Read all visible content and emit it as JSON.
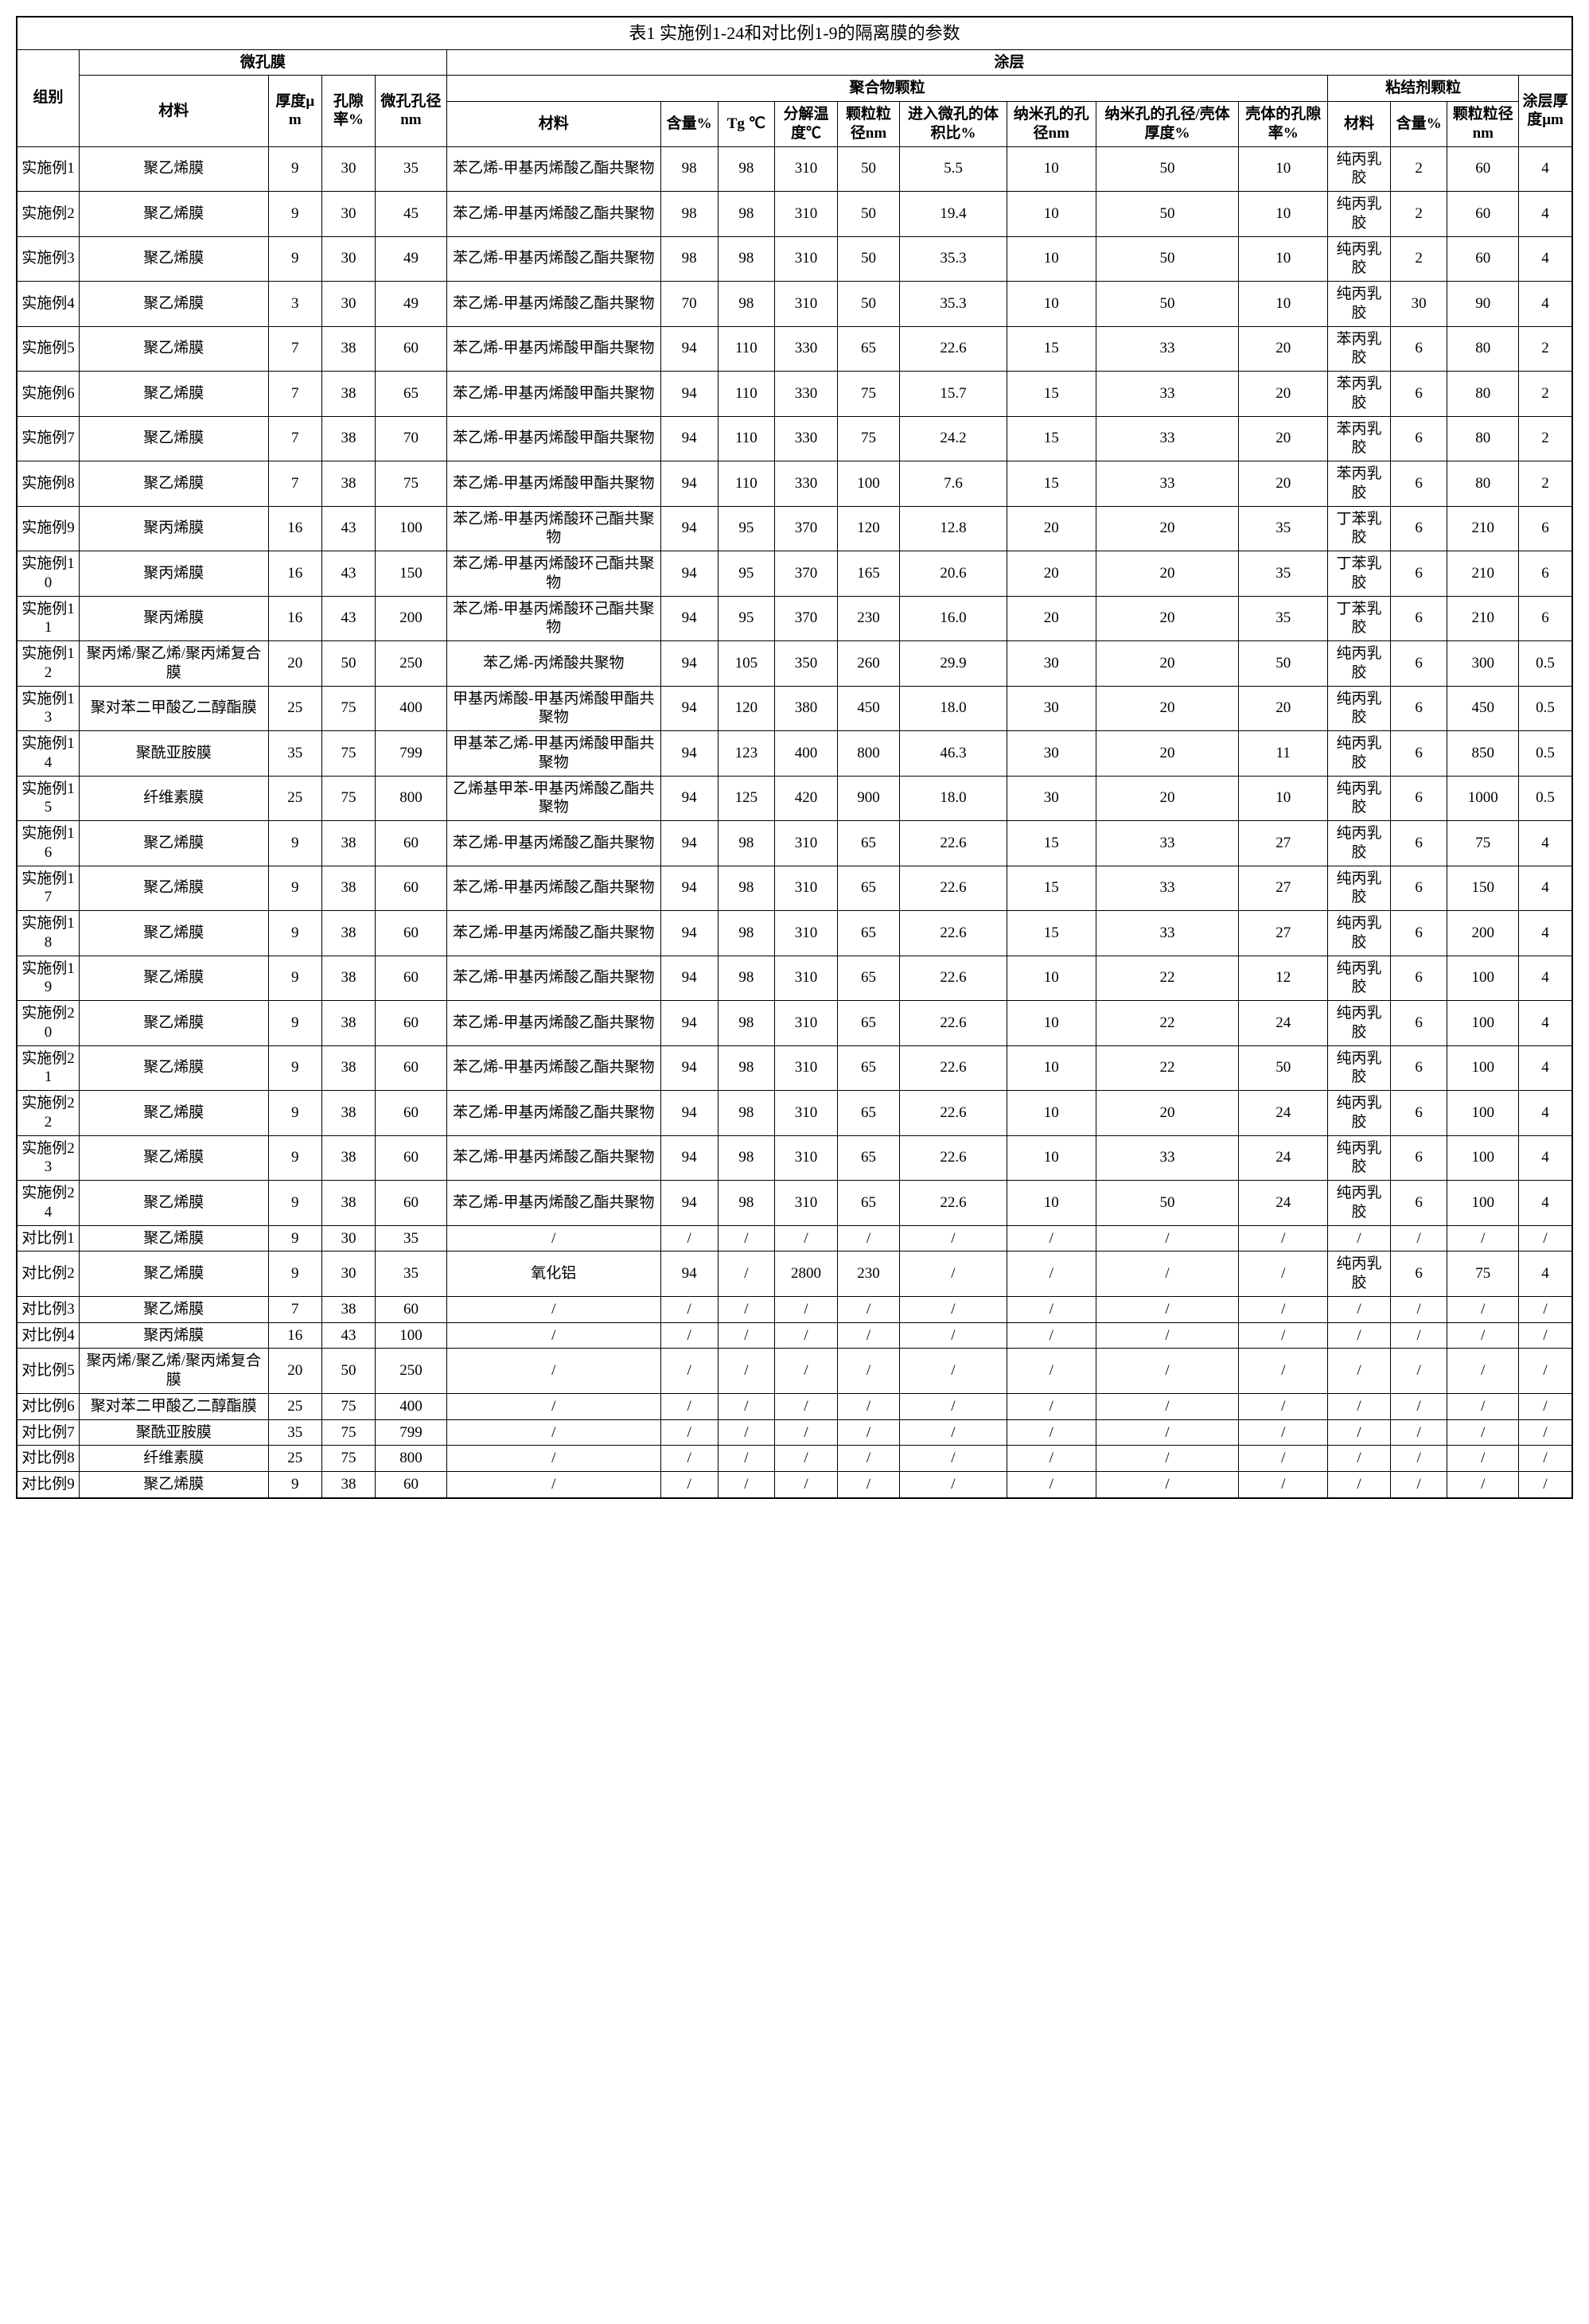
{
  "title": "表1 实施例1-24和对比例1-9的隔离膜的参数",
  "headers": {
    "group": "组别",
    "micro": "微孔膜",
    "coating": "涂层",
    "material": "材料",
    "thickness": "厚度μm",
    "porosity": "孔隙率%",
    "pore_size": "微孔孔径nm",
    "polymer": "聚合物颗粒",
    "binder": "粘结剂颗粒",
    "coat_thick": "涂层厚度μm",
    "content": "含量%",
    "tg": "Tg ℃",
    "decomp": "分解温度℃",
    "particle": "颗粒粒径nm",
    "vol_ratio": "进入微孔的体积比%",
    "nano_pore": "纳米孔的孔径nm",
    "nano_ratio": "纳米孔的孔径/壳体厚度%",
    "shell_por": "壳体的孔隙率%",
    "b_material": "材料",
    "b_content": "含量%",
    "b_particle": "颗粒粒径nm"
  },
  "rows": [
    {
      "g": "实施例1",
      "m": "聚乙烯膜",
      "t": "9",
      "p": "30",
      "ps": "35",
      "cm": "苯乙烯-甲基丙烯酸乙酯共聚物",
      "c": "98",
      "tg": "98",
      "d": "310",
      "pp": "50",
      "v": "5.5",
      "n": "10",
      "r": "50",
      "s": "10",
      "bm": "纯丙乳胶",
      "bc": "2",
      "bp": "60",
      "ct": "4"
    },
    {
      "g": "实施例2",
      "m": "聚乙烯膜",
      "t": "9",
      "p": "30",
      "ps": "45",
      "cm": "苯乙烯-甲基丙烯酸乙酯共聚物",
      "c": "98",
      "tg": "98",
      "d": "310",
      "pp": "50",
      "v": "19.4",
      "n": "10",
      "r": "50",
      "s": "10",
      "bm": "纯丙乳胶",
      "bc": "2",
      "bp": "60",
      "ct": "4"
    },
    {
      "g": "实施例3",
      "m": "聚乙烯膜",
      "t": "9",
      "p": "30",
      "ps": "49",
      "cm": "苯乙烯-甲基丙烯酸乙酯共聚物",
      "c": "98",
      "tg": "98",
      "d": "310",
      "pp": "50",
      "v": "35.3",
      "n": "10",
      "r": "50",
      "s": "10",
      "bm": "纯丙乳胶",
      "bc": "2",
      "bp": "60",
      "ct": "4"
    },
    {
      "g": "实施例4",
      "m": "聚乙烯膜",
      "t": "3",
      "p": "30",
      "ps": "49",
      "cm": "苯乙烯-甲基丙烯酸乙酯共聚物",
      "c": "70",
      "tg": "98",
      "d": "310",
      "pp": "50",
      "v": "35.3",
      "n": "10",
      "r": "50",
      "s": "10",
      "bm": "纯丙乳胶",
      "bc": "30",
      "bp": "90",
      "ct": "4"
    },
    {
      "g": "实施例5",
      "m": "聚乙烯膜",
      "t": "7",
      "p": "38",
      "ps": "60",
      "cm": "苯乙烯-甲基丙烯酸甲酯共聚物",
      "c": "94",
      "tg": "110",
      "d": "330",
      "pp": "65",
      "v": "22.6",
      "n": "15",
      "r": "33",
      "s": "20",
      "bm": "苯丙乳胶",
      "bc": "6",
      "bp": "80",
      "ct": "2"
    },
    {
      "g": "实施例6",
      "m": "聚乙烯膜",
      "t": "7",
      "p": "38",
      "ps": "65",
      "cm": "苯乙烯-甲基丙烯酸甲酯共聚物",
      "c": "94",
      "tg": "110",
      "d": "330",
      "pp": "75",
      "v": "15.7",
      "n": "15",
      "r": "33",
      "s": "20",
      "bm": "苯丙乳胶",
      "bc": "6",
      "bp": "80",
      "ct": "2"
    },
    {
      "g": "实施例7",
      "m": "聚乙烯膜",
      "t": "7",
      "p": "38",
      "ps": "70",
      "cm": "苯乙烯-甲基丙烯酸甲酯共聚物",
      "c": "94",
      "tg": "110",
      "d": "330",
      "pp": "75",
      "v": "24.2",
      "n": "15",
      "r": "33",
      "s": "20",
      "bm": "苯丙乳胶",
      "bc": "6",
      "bp": "80",
      "ct": "2"
    },
    {
      "g": "实施例8",
      "m": "聚乙烯膜",
      "t": "7",
      "p": "38",
      "ps": "75",
      "cm": "苯乙烯-甲基丙烯酸甲酯共聚物",
      "c": "94",
      "tg": "110",
      "d": "330",
      "pp": "100",
      "v": "7.6",
      "n": "15",
      "r": "33",
      "s": "20",
      "bm": "苯丙乳胶",
      "bc": "6",
      "bp": "80",
      "ct": "2"
    },
    {
      "g": "实施例9",
      "m": "聚丙烯膜",
      "t": "16",
      "p": "43",
      "ps": "100",
      "cm": "苯乙烯-甲基丙烯酸环己酯共聚物",
      "c": "94",
      "tg": "95",
      "d": "370",
      "pp": "120",
      "v": "12.8",
      "n": "20",
      "r": "20",
      "s": "35",
      "bm": "丁苯乳胶",
      "bc": "6",
      "bp": "210",
      "ct": "6"
    },
    {
      "g": "实施例10",
      "m": "聚丙烯膜",
      "t": "16",
      "p": "43",
      "ps": "150",
      "cm": "苯乙烯-甲基丙烯酸环己酯共聚物",
      "c": "94",
      "tg": "95",
      "d": "370",
      "pp": "165",
      "v": "20.6",
      "n": "20",
      "r": "20",
      "s": "35",
      "bm": "丁苯乳胶",
      "bc": "6",
      "bp": "210",
      "ct": "6"
    },
    {
      "g": "实施例11",
      "m": "聚丙烯膜",
      "t": "16",
      "p": "43",
      "ps": "200",
      "cm": "苯乙烯-甲基丙烯酸环己酯共聚物",
      "c": "94",
      "tg": "95",
      "d": "370",
      "pp": "230",
      "v": "16.0",
      "n": "20",
      "r": "20",
      "s": "35",
      "bm": "丁苯乳胶",
      "bc": "6",
      "bp": "210",
      "ct": "6"
    },
    {
      "g": "实施例12",
      "m": "聚丙烯/聚乙烯/聚丙烯复合膜",
      "t": "20",
      "p": "50",
      "ps": "250",
      "cm": "苯乙烯-丙烯酸共聚物",
      "c": "94",
      "tg": "105",
      "d": "350",
      "pp": "260",
      "v": "29.9",
      "n": "30",
      "r": "20",
      "s": "50",
      "bm": "纯丙乳胶",
      "bc": "6",
      "bp": "300",
      "ct": "0.5"
    },
    {
      "g": "实施例13",
      "m": "聚对苯二甲酸乙二醇酯膜",
      "t": "25",
      "p": "75",
      "ps": "400",
      "cm": "甲基丙烯酸-甲基丙烯酸甲酯共聚物",
      "c": "94",
      "tg": "120",
      "d": "380",
      "pp": "450",
      "v": "18.0",
      "n": "30",
      "r": "20",
      "s": "20",
      "bm": "纯丙乳胶",
      "bc": "6",
      "bp": "450",
      "ct": "0.5"
    },
    {
      "g": "实施例14",
      "m": "聚酰亚胺膜",
      "t": "35",
      "p": "75",
      "ps": "799",
      "cm": "甲基苯乙烯-甲基丙烯酸甲酯共聚物",
      "c": "94",
      "tg": "123",
      "d": "400",
      "pp": "800",
      "v": "46.3",
      "n": "30",
      "r": "20",
      "s": "11",
      "bm": "纯丙乳胶",
      "bc": "6",
      "bp": "850",
      "ct": "0.5"
    },
    {
      "g": "实施例15",
      "m": "纤维素膜",
      "t": "25",
      "p": "75",
      "ps": "800",
      "cm": "乙烯基甲苯-甲基丙烯酸乙酯共聚物",
      "c": "94",
      "tg": "125",
      "d": "420",
      "pp": "900",
      "v": "18.0",
      "n": "30",
      "r": "20",
      "s": "10",
      "bm": "纯丙乳胶",
      "bc": "6",
      "bp": "1000",
      "ct": "0.5"
    },
    {
      "g": "实施例16",
      "m": "聚乙烯膜",
      "t": "9",
      "p": "38",
      "ps": "60",
      "cm": "苯乙烯-甲基丙烯酸乙酯共聚物",
      "c": "94",
      "tg": "98",
      "d": "310",
      "pp": "65",
      "v": "22.6",
      "n": "15",
      "r": "33",
      "s": "27",
      "bm": "纯丙乳胶",
      "bc": "6",
      "bp": "75",
      "ct": "4"
    },
    {
      "g": "实施例17",
      "m": "聚乙烯膜",
      "t": "9",
      "p": "38",
      "ps": "60",
      "cm": "苯乙烯-甲基丙烯酸乙酯共聚物",
      "c": "94",
      "tg": "98",
      "d": "310",
      "pp": "65",
      "v": "22.6",
      "n": "15",
      "r": "33",
      "s": "27",
      "bm": "纯丙乳胶",
      "bc": "6",
      "bp": "150",
      "ct": "4"
    },
    {
      "g": "实施例18",
      "m": "聚乙烯膜",
      "t": "9",
      "p": "38",
      "ps": "60",
      "cm": "苯乙烯-甲基丙烯酸乙酯共聚物",
      "c": "94",
      "tg": "98",
      "d": "310",
      "pp": "65",
      "v": "22.6",
      "n": "15",
      "r": "33",
      "s": "27",
      "bm": "纯丙乳胶",
      "bc": "6",
      "bp": "200",
      "ct": "4"
    },
    {
      "g": "实施例19",
      "m": "聚乙烯膜",
      "t": "9",
      "p": "38",
      "ps": "60",
      "cm": "苯乙烯-甲基丙烯酸乙酯共聚物",
      "c": "94",
      "tg": "98",
      "d": "310",
      "pp": "65",
      "v": "22.6",
      "n": "10",
      "r": "22",
      "s": "12",
      "bm": "纯丙乳胶",
      "bc": "6",
      "bp": "100",
      "ct": "4"
    },
    {
      "g": "实施例20",
      "m": "聚乙烯膜",
      "t": "9",
      "p": "38",
      "ps": "60",
      "cm": "苯乙烯-甲基丙烯酸乙酯共聚物",
      "c": "94",
      "tg": "98",
      "d": "310",
      "pp": "65",
      "v": "22.6",
      "n": "10",
      "r": "22",
      "s": "24",
      "bm": "纯丙乳胶",
      "bc": "6",
      "bp": "100",
      "ct": "4"
    },
    {
      "g": "实施例21",
      "m": "聚乙烯膜",
      "t": "9",
      "p": "38",
      "ps": "60",
      "cm": "苯乙烯-甲基丙烯酸乙酯共聚物",
      "c": "94",
      "tg": "98",
      "d": "310",
      "pp": "65",
      "v": "22.6",
      "n": "10",
      "r": "22",
      "s": "50",
      "bm": "纯丙乳胶",
      "bc": "6",
      "bp": "100",
      "ct": "4"
    },
    {
      "g": "实施例22",
      "m": "聚乙烯膜",
      "t": "9",
      "p": "38",
      "ps": "60",
      "cm": "苯乙烯-甲基丙烯酸乙酯共聚物",
      "c": "94",
      "tg": "98",
      "d": "310",
      "pp": "65",
      "v": "22.6",
      "n": "10",
      "r": "20",
      "s": "24",
      "bm": "纯丙乳胶",
      "bc": "6",
      "bp": "100",
      "ct": "4"
    },
    {
      "g": "实施例23",
      "m": "聚乙烯膜",
      "t": "9",
      "p": "38",
      "ps": "60",
      "cm": "苯乙烯-甲基丙烯酸乙酯共聚物",
      "c": "94",
      "tg": "98",
      "d": "310",
      "pp": "65",
      "v": "22.6",
      "n": "10",
      "r": "33",
      "s": "24",
      "bm": "纯丙乳胶",
      "bc": "6",
      "bp": "100",
      "ct": "4"
    },
    {
      "g": "实施例24",
      "m": "聚乙烯膜",
      "t": "9",
      "p": "38",
      "ps": "60",
      "cm": "苯乙烯-甲基丙烯酸乙酯共聚物",
      "c": "94",
      "tg": "98",
      "d": "310",
      "pp": "65",
      "v": "22.6",
      "n": "10",
      "r": "50",
      "s": "24",
      "bm": "纯丙乳胶",
      "bc": "6",
      "bp": "100",
      "ct": "4"
    },
    {
      "g": "对比例1",
      "m": "聚乙烯膜",
      "t": "9",
      "p": "30",
      "ps": "35",
      "cm": "/",
      "c": "/",
      "tg": "/",
      "d": "/",
      "pp": "/",
      "v": "/",
      "n": "/",
      "r": "/",
      "s": "/",
      "bm": "/",
      "bc": "/",
      "bp": "/",
      "ct": "/"
    },
    {
      "g": "对比例2",
      "m": "聚乙烯膜",
      "t": "9",
      "p": "30",
      "ps": "35",
      "cm": "氧化铝",
      "c": "94",
      "tg": "/",
      "d": "2800",
      "pp": "230",
      "v": "/",
      "n": "/",
      "r": "/",
      "s": "/",
      "bm": "纯丙乳胶",
      "bc": "6",
      "bp": "75",
      "ct": "4"
    },
    {
      "g": "对比例3",
      "m": "聚乙烯膜",
      "t": "7",
      "p": "38",
      "ps": "60",
      "cm": "/",
      "c": "/",
      "tg": "/",
      "d": "/",
      "pp": "/",
      "v": "/",
      "n": "/",
      "r": "/",
      "s": "/",
      "bm": "/",
      "bc": "/",
      "bp": "/",
      "ct": "/"
    },
    {
      "g": "对比例4",
      "m": "聚丙烯膜",
      "t": "16",
      "p": "43",
      "ps": "100",
      "cm": "/",
      "c": "/",
      "tg": "/",
      "d": "/",
      "pp": "/",
      "v": "/",
      "n": "/",
      "r": "/",
      "s": "/",
      "bm": "/",
      "bc": "/",
      "bp": "/",
      "ct": "/"
    },
    {
      "g": "对比例5",
      "m": "聚丙烯/聚乙烯/聚丙烯复合膜",
      "t": "20",
      "p": "50",
      "ps": "250",
      "cm": "/",
      "c": "/",
      "tg": "/",
      "d": "/",
      "pp": "/",
      "v": "/",
      "n": "/",
      "r": "/",
      "s": "/",
      "bm": "/",
      "bc": "/",
      "bp": "/",
      "ct": "/"
    },
    {
      "g": "对比例6",
      "m": "聚对苯二甲酸乙二醇酯膜",
      "t": "25",
      "p": "75",
      "ps": "400",
      "cm": "/",
      "c": "/",
      "tg": "/",
      "d": "/",
      "pp": "/",
      "v": "/",
      "n": "/",
      "r": "/",
      "s": "/",
      "bm": "/",
      "bc": "/",
      "bp": "/",
      "ct": "/"
    },
    {
      "g": "对比例7",
      "m": "聚酰亚胺膜",
      "t": "35",
      "p": "75",
      "ps": "799",
      "cm": "/",
      "c": "/",
      "tg": "/",
      "d": "/",
      "pp": "/",
      "v": "/",
      "n": "/",
      "r": "/",
      "s": "/",
      "bm": "/",
      "bc": "/",
      "bp": "/",
      "ct": "/"
    },
    {
      "g": "对比例8",
      "m": "纤维素膜",
      "t": "25",
      "p": "75",
      "ps": "800",
      "cm": "/",
      "c": "/",
      "tg": "/",
      "d": "/",
      "pp": "/",
      "v": "/",
      "n": "/",
      "r": "/",
      "s": "/",
      "bm": "/",
      "bc": "/",
      "bp": "/",
      "ct": "/"
    },
    {
      "g": "对比例9",
      "m": "聚乙烯膜",
      "t": "9",
      "p": "38",
      "ps": "60",
      "cm": "/",
      "c": "/",
      "tg": "/",
      "d": "/",
      "pp": "/",
      "v": "/",
      "n": "/",
      "r": "/",
      "s": "/",
      "bm": "/",
      "bc": "/",
      "bp": "/",
      "ct": "/"
    }
  ]
}
